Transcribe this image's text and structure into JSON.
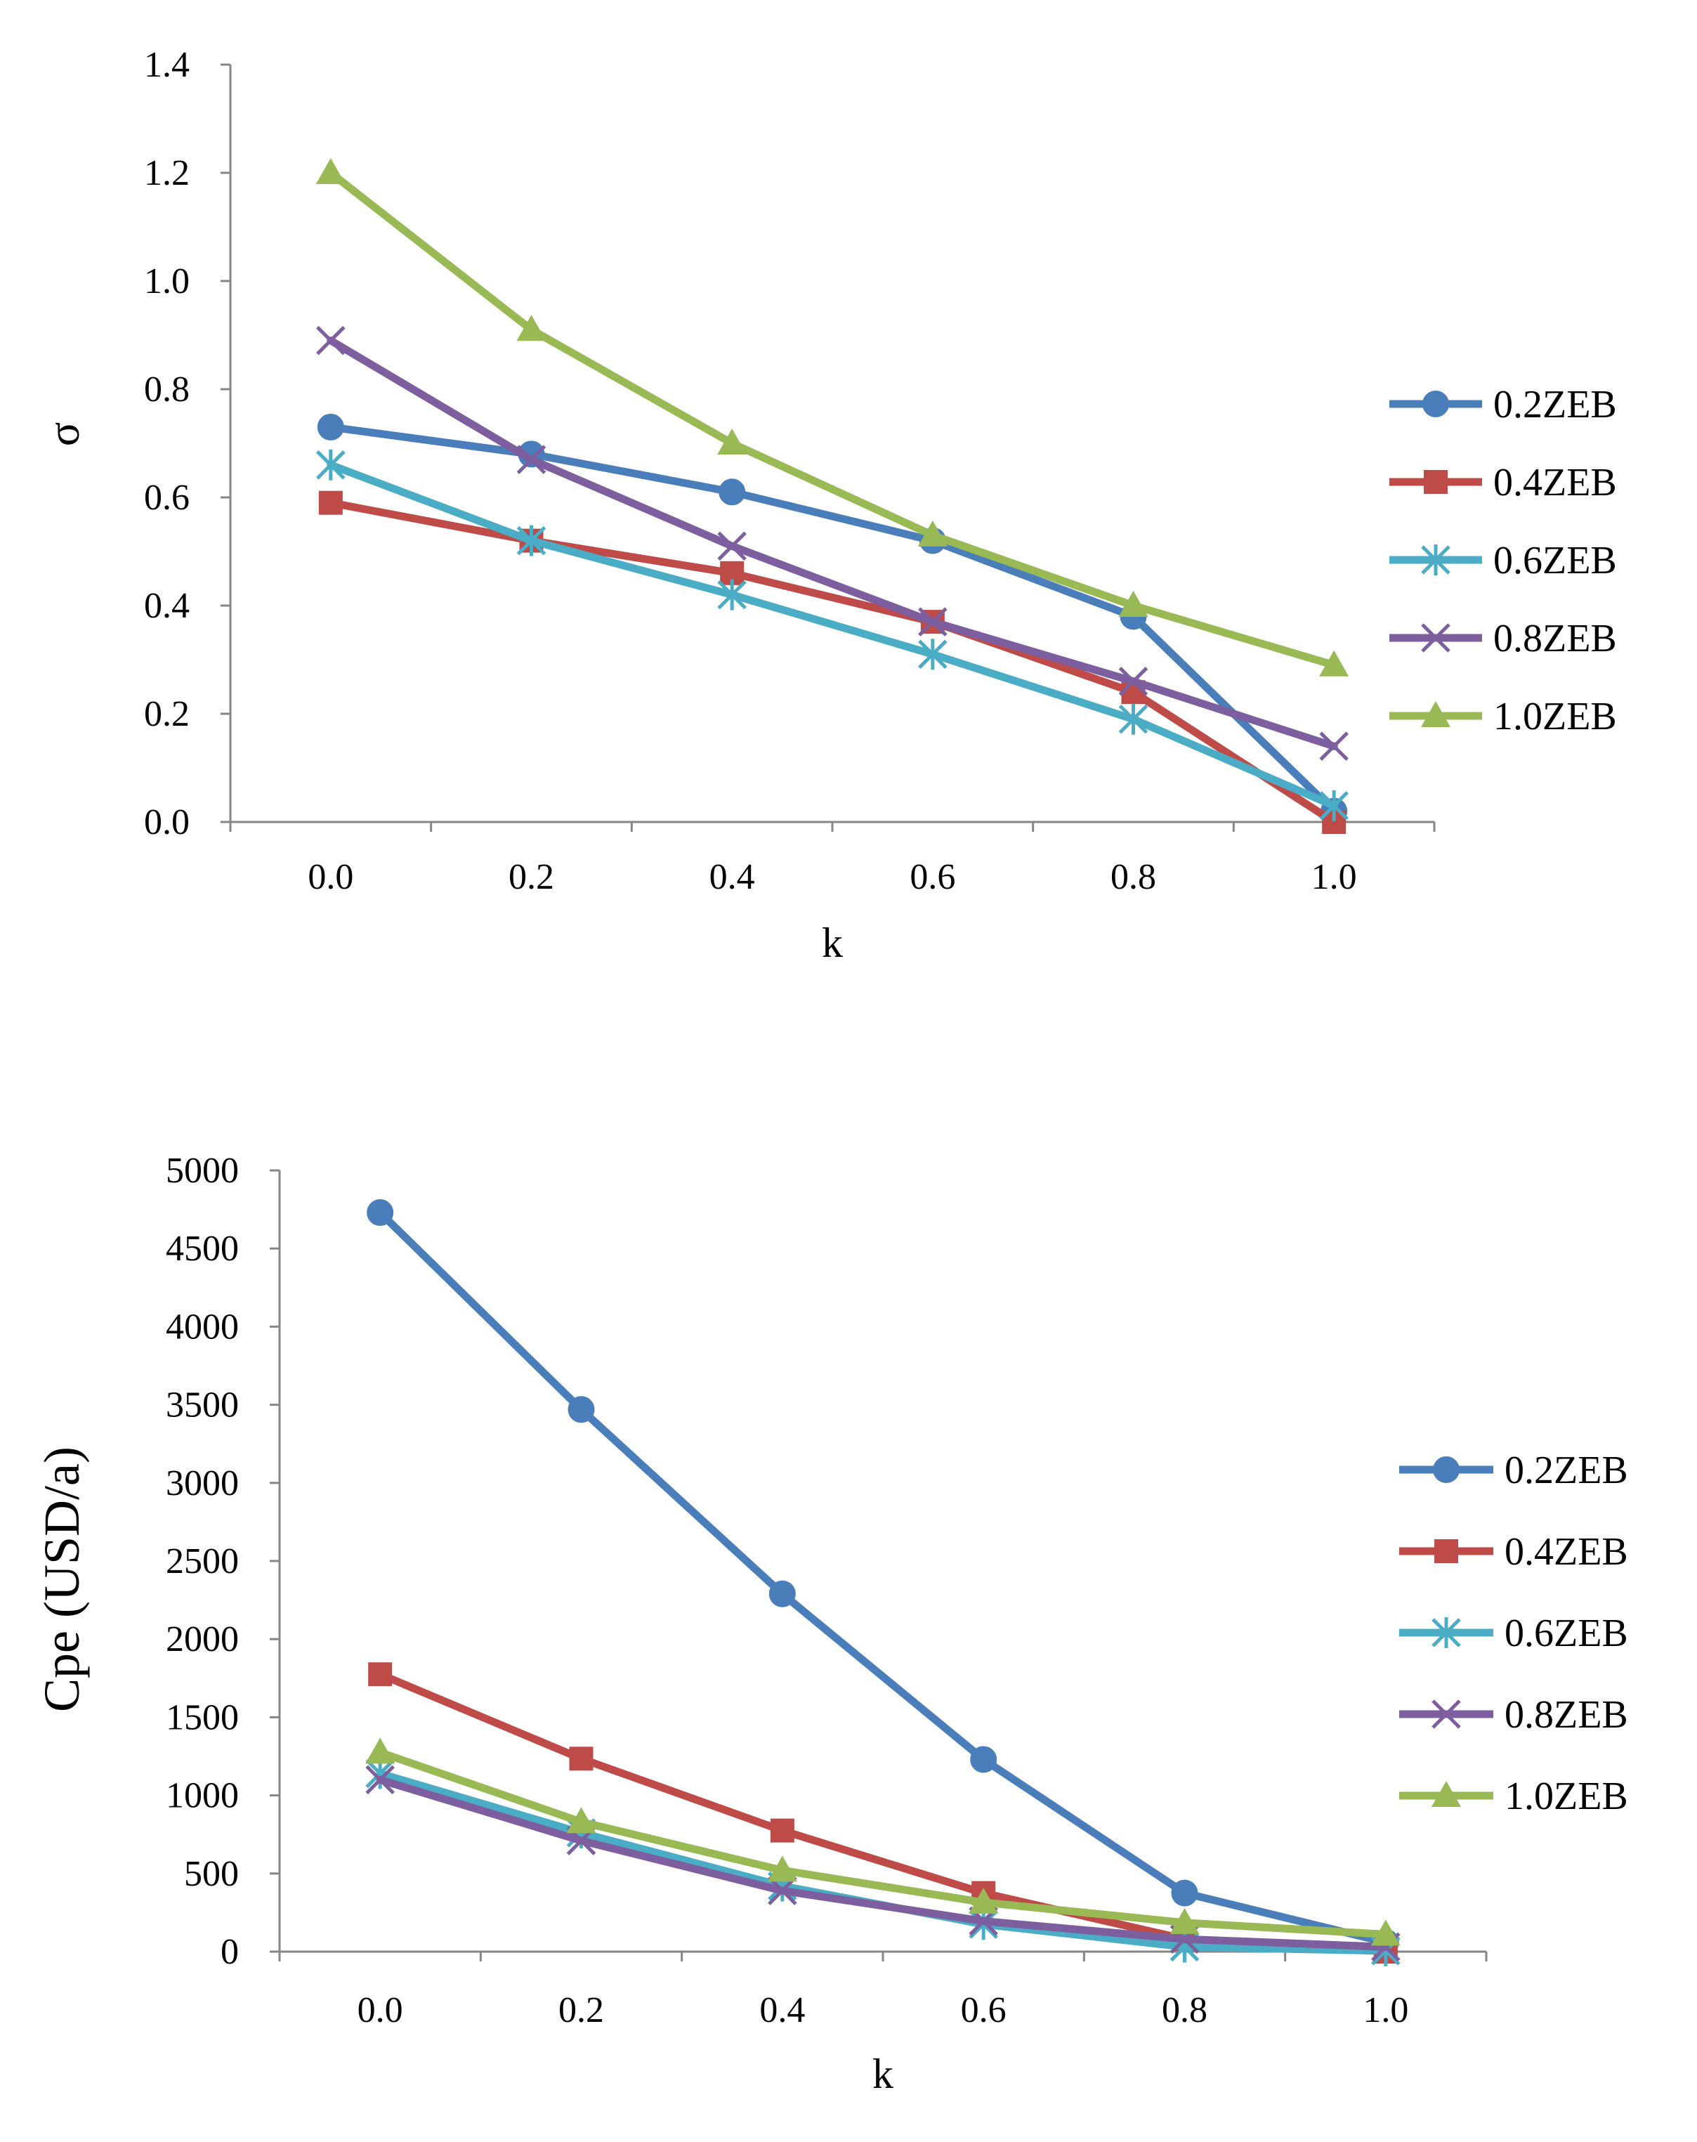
{
  "legend_markers": {
    "0.2ZEB": "circle",
    "0.4ZEB": "square",
    "0.6ZEB": "asterisk",
    "0.8ZEB": "x",
    "1.0ZEB": "triangle"
  },
  "colors": {
    "0.2ZEB": "#4A7EBB",
    "0.4ZEB": "#BE4B48",
    "0.6ZEB": "#4BACC6",
    "0.8ZEB": "#7D5FA0",
    "1.0ZEB": "#98B954"
  },
  "chart_data": [
    {
      "type": "line",
      "title": "",
      "xlabel": "k",
      "ylabel": "σ",
      "categories": [
        "0.0",
        "0.2",
        "0.4",
        "0.6",
        "0.8",
        "1.0"
      ],
      "ylim": [
        0,
        1.4
      ],
      "yticks": [
        "0.0",
        "0.2",
        "0.4",
        "0.6",
        "0.8",
        "1.0",
        "1.2",
        "1.4"
      ],
      "ytick_values": [
        0,
        0.2,
        0.4,
        0.6,
        0.8,
        1.0,
        1.2,
        1.4
      ],
      "grid": false,
      "legend_position": "right",
      "series": [
        {
          "name": "0.2ZEB",
          "values": [
            0.73,
            0.68,
            0.61,
            0.52,
            0.38,
            0.02
          ]
        },
        {
          "name": "0.4ZEB",
          "values": [
            0.59,
            0.52,
            0.46,
            0.37,
            0.24,
            0.0
          ]
        },
        {
          "name": "0.6ZEB",
          "values": [
            0.66,
            0.52,
            0.42,
            0.31,
            0.19,
            0.03
          ]
        },
        {
          "name": "0.8ZEB",
          "values": [
            0.89,
            0.67,
            0.51,
            0.37,
            0.26,
            0.14
          ]
        },
        {
          "name": "1.0ZEB",
          "values": [
            1.2,
            0.91,
            0.7,
            0.53,
            0.4,
            0.29
          ]
        }
      ]
    },
    {
      "type": "line",
      "title": "",
      "xlabel": "k",
      "ylabel": "Cpe (USD/a)",
      "categories": [
        "0.0",
        "0.2",
        "0.4",
        "0.6",
        "0.8",
        "1.0"
      ],
      "ylim": [
        0,
        5000
      ],
      "yticks": [
        "0",
        "500",
        "1000",
        "1500",
        "2000",
        "2500",
        "3000",
        "3500",
        "4000",
        "4500",
        "5000"
      ],
      "ytick_values": [
        0,
        500,
        1000,
        1500,
        2000,
        2500,
        3000,
        3500,
        4000,
        4500,
        5000
      ],
      "grid": false,
      "legend_position": "right",
      "series": [
        {
          "name": "0.2ZEB",
          "values": [
            4730,
            3470,
            2290,
            1230,
            375,
            60
          ]
        },
        {
          "name": "0.4ZEB",
          "values": [
            1775,
            1235,
            775,
            375,
            80,
            0
          ]
        },
        {
          "name": "0.6ZEB",
          "values": [
            1140,
            760,
            420,
            175,
            30,
            5
          ]
        },
        {
          "name": "0.8ZEB",
          "values": [
            1100,
            710,
            390,
            195,
            80,
            30
          ]
        },
        {
          "name": "1.0ZEB",
          "values": [
            1275,
            830,
            520,
            315,
            185,
            110
          ]
        }
      ]
    }
  ]
}
